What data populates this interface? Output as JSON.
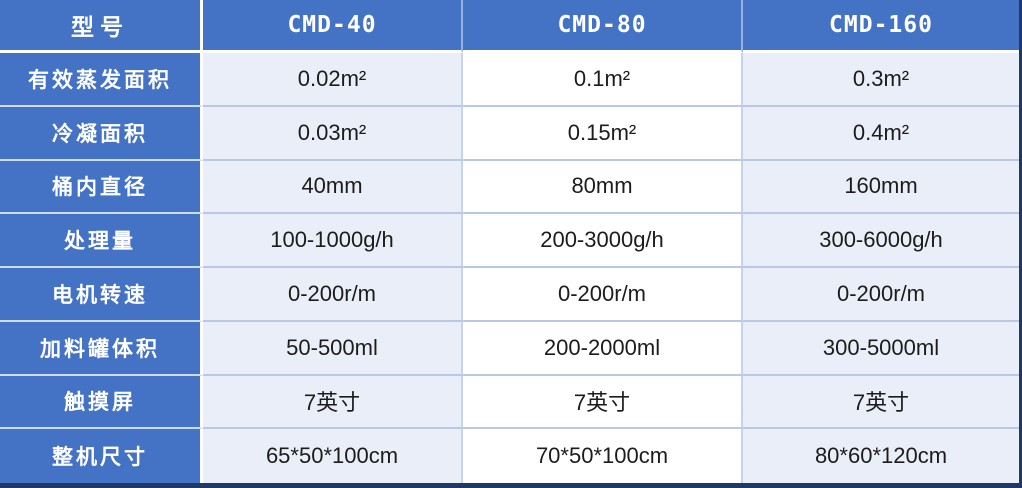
{
  "table": {
    "header": {
      "col0": "型号",
      "models": [
        "CMD-40",
        "CMD-80",
        "CMD-160"
      ]
    },
    "rows": [
      {
        "label": "有效蒸发面积",
        "values": [
          "0.02m²",
          "0.1m²",
          "0.3m²"
        ]
      },
      {
        "label": "冷凝面积",
        "values": [
          "0.03m²",
          "0.15m²",
          "0.4m²"
        ]
      },
      {
        "label": "桶内直径",
        "values": [
          "40mm",
          "80mm",
          "160mm"
        ]
      },
      {
        "label": "处理量",
        "values": [
          "100-1000g/h",
          "200-3000g/h",
          "300-6000g/h"
        ]
      },
      {
        "label": "电机转速",
        "values": [
          "0-200r/m",
          "0-200r/m",
          "0-200r/m"
        ]
      },
      {
        "label": "加料罐体积",
        "values": [
          "50-500ml",
          "200-2000ml",
          "300-5000ml"
        ]
      },
      {
        "label": "触摸屏",
        "values": [
          "7英寸",
          "7英寸",
          "7英寸"
        ]
      },
      {
        "label": "整机尺寸",
        "values": [
          "65*50*100cm",
          "70*50*100cm",
          "80*60*120cm"
        ]
      }
    ],
    "colors": {
      "header_blue": "#4472c4",
      "shaded_cell": "#eaeef8",
      "plain_cell": "#ffffff",
      "grid_line": "#b9c9e5",
      "outer_edge_navy": "#1f3864"
    }
  }
}
